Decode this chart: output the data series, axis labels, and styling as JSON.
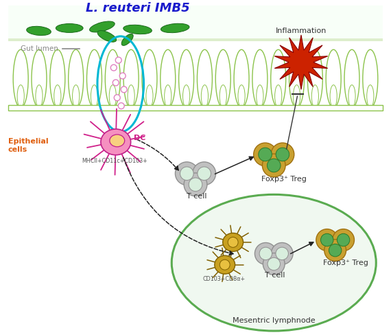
{
  "title": "L. reuteri IMB5",
  "gut_lumen_label": "Gut lumen",
  "epithelial_label": "Epithelial\ncells",
  "dc_label": "DC",
  "mhc_label": "MHCII+CD11c+CD103+",
  "tcell_label1": "T cell",
  "tcell_label2": "T cell",
  "foxp3_label1": "Foxp3⁺ Treg",
  "foxp3_label2": "Foxp3⁺ Treg",
  "cd103_label": "CD103+CD8α+",
  "inflammation_label": "Inflammation",
  "mesenteric_label": "Mesentric lymphnode",
  "bg_color": "#ffffff",
  "gut_fill": "#ffffff",
  "gut_outline": "#8bc34a",
  "bacteria_color": "#33a02c",
  "inflammation_color": "#cc2200",
  "dc_pink_color": "#f06090",
  "dc_nucleus_color": "#f8d0b0",
  "dc_yellow_color": "#c8a000",
  "treg_outer_color": "#c8a000",
  "treg_inner_color": "#5aab50",
  "tcell_outer_color": "#aaaaaa",
  "tcell_inner_color": "#d8eed8",
  "mesenteric_fill": "#f0f8f0",
  "mesenteric_circle_color": "#5aab50",
  "cyan_ellipse_color": "#00b8d4",
  "arrow_color": "#222222",
  "title_color": "#1a1acc",
  "gut_lumen_color": "#888888",
  "epithelial_color": "#e06010",
  "vesicle_color": "#e080c0",
  "inhibit_color": "#333333"
}
